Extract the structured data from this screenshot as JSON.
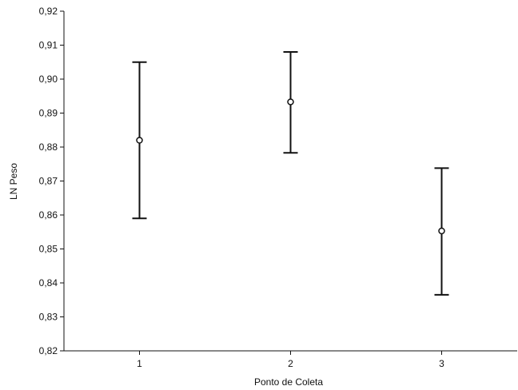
{
  "chart_data": {
    "type": "scatter",
    "subtype": "errorbar",
    "title": "",
    "xlabel": "Ponto de Coleta",
    "ylabel": "LN Peso",
    "categories": [
      "1",
      "2",
      "3"
    ],
    "x": [
      1,
      2,
      3
    ],
    "xlim": [
      0.5,
      3.5
    ],
    "ylim": [
      0.82,
      0.92
    ],
    "yticks": [
      0.82,
      0.83,
      0.84,
      0.85,
      0.86,
      0.87,
      0.88,
      0.89,
      0.9,
      0.91,
      0.92
    ],
    "ytick_labels": [
      "0,82",
      "0,83",
      "0,84",
      "0,85",
      "0,86",
      "0,87",
      "0,88",
      "0,89",
      "0,90",
      "0,91",
      "0,92"
    ],
    "series": [
      {
        "values": [
          0.882,
          0.8933,
          0.8553
        ],
        "lower": [
          0.859,
          0.8783,
          0.8365
        ],
        "upper": [
          0.905,
          0.908,
          0.8738
        ]
      }
    ],
    "grid": false,
    "legend": "none",
    "colors": {
      "axis": "#111111",
      "marker_fill": "#ffffff",
      "line": "#111111"
    }
  }
}
